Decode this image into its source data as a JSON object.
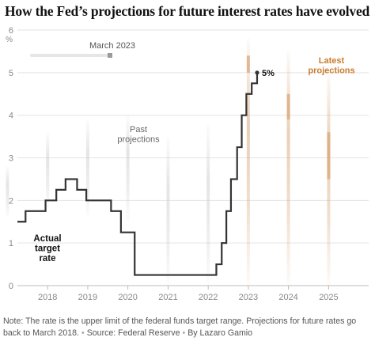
{
  "title": "How the Fed’s projections for future interest rates have evolved",
  "chart_data": {
    "type": "line",
    "title": "How the Fed’s projections for future interest rates have evolved",
    "ylabel": "%",
    "ylim": [
      0,
      6
    ],
    "yticks": [
      "0",
      "1",
      "2",
      "3",
      "4",
      "5",
      "6"
    ],
    "xlim": [
      "2017-04-01",
      "2025-12-31"
    ],
    "xticks": [
      "2018",
      "2019",
      "2020",
      "2021",
      "2022",
      "2023",
      "2024",
      "2025"
    ],
    "grid": true,
    "series": [
      {
        "name": "Actual target rate",
        "end_label": "5%",
        "color": "#333333",
        "points": [
          [
            "2017-04-01",
            1.5
          ],
          [
            "2017-06-14",
            1.75
          ],
          [
            "2017-12-13",
            2.0
          ],
          [
            "2018-03-21",
            2.25
          ],
          [
            "2018-06-13",
            2.5
          ],
          [
            "2018-09-26",
            2.25
          ],
          [
            "2018-12-19",
            2.0
          ],
          [
            "2019-08-01",
            1.75
          ],
          [
            "2019-10-30",
            1.25
          ],
          [
            "2020-03-03",
            0.25
          ],
          [
            "2022-03-16",
            0.5
          ],
          [
            "2022-05-04",
            1.0
          ],
          [
            "2022-06-15",
            1.75
          ],
          [
            "2022-07-27",
            2.5
          ],
          [
            "2022-09-21",
            3.25
          ],
          [
            "2022-11-02",
            4.0
          ],
          [
            "2022-12-14",
            4.5
          ],
          [
            "2023-02-01",
            4.75
          ],
          [
            "2023-03-22",
            5.0
          ]
        ]
      }
    ],
    "projection_columns": [
      {
        "year": "2017",
        "role": "past",
        "range": [
          1.6,
          2.8
        ]
      },
      {
        "year": "2018",
        "role": "past",
        "range": [
          1.8,
          3.6
        ]
      },
      {
        "year": "2019",
        "role": "past",
        "range": [
          1.6,
          3.9
        ]
      },
      {
        "year": "2020",
        "role": "past",
        "range": [
          1.5,
          4.0
        ]
      },
      {
        "year": "2021",
        "role": "past",
        "range": [
          0.0,
          3.5
        ]
      },
      {
        "year": "2022",
        "role": "past",
        "range": [
          0.0,
          3.8
        ]
      },
      {
        "year": "2023",
        "role": "latest",
        "range": [
          0.0,
          5.8
        ],
        "peak": [
          5.0,
          5.4
        ]
      },
      {
        "year": "2024",
        "role": "latest",
        "range": [
          0.0,
          5.5
        ],
        "peak": [
          3.9,
          4.5
        ]
      },
      {
        "year": "2025",
        "role": "latest",
        "range": [
          0.0,
          5.0
        ],
        "peak": [
          2.5,
          3.6
        ]
      }
    ],
    "annotations": {
      "actual_label": "Actual\ntarget\nrate",
      "past_label": "Past\nprojections",
      "latest_label": "Latest\nprojections",
      "slider_label": "March 2023"
    },
    "colors": {
      "line": "#333333",
      "latest": "#c97c2c",
      "past_text": "#666666",
      "grid": "#e3e3e3",
      "axis_text": "#888888"
    }
  },
  "note": {
    "text": "Note: The rate is the upper limit of the federal funds target range. Projections for future rates go back to March 2018.",
    "source": "Source: Federal Reserve",
    "credit": "By Lazaro Gamio"
  }
}
